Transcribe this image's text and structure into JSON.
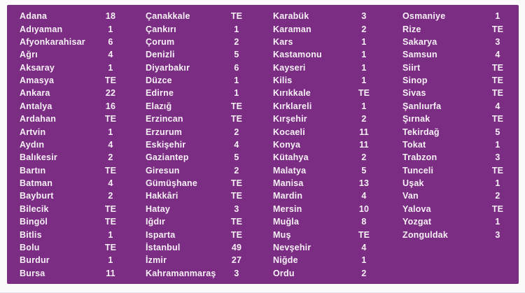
{
  "colors": {
    "page_bg": "#fbfbfc",
    "panel_bg": "#7b2d83",
    "text": "#f7f0f6",
    "page_edge": "#e4e4e8"
  },
  "chart_data": {
    "type": "table",
    "title": "",
    "group_fields": [
      "province",
      "value"
    ],
    "non_numeric_value": "TE",
    "columns": [
      {
        "rows": [
          {
            "label": "Adana",
            "value": "18"
          },
          {
            "label": "Adıyaman",
            "value": "1"
          },
          {
            "label": "Afyonkarahisar",
            "value": "6"
          },
          {
            "label": "Ağrı",
            "value": "4"
          },
          {
            "label": "Aksaray",
            "value": "1"
          },
          {
            "label": "Amasya",
            "value": "TE"
          },
          {
            "label": "Ankara",
            "value": "22"
          },
          {
            "label": "Antalya",
            "value": "16"
          },
          {
            "label": "Ardahan",
            "value": "TE"
          },
          {
            "label": "Artvin",
            "value": "1"
          },
          {
            "label": "Aydın",
            "value": "4"
          },
          {
            "label": "Balıkesir",
            "value": "2"
          },
          {
            "label": "Bartın",
            "value": "TE"
          },
          {
            "label": "Batman",
            "value": "4"
          },
          {
            "label": "Bayburt",
            "value": "2"
          },
          {
            "label": "Bilecik",
            "value": "TE"
          },
          {
            "label": "Bingöl",
            "value": "TE"
          },
          {
            "label": "Bitlis",
            "value": "1"
          },
          {
            "label": "Bolu",
            "value": "TE"
          },
          {
            "label": "Burdur",
            "value": "1"
          },
          {
            "label": "Bursa",
            "value": "11"
          }
        ]
      },
      {
        "rows": [
          {
            "label": "Çanakkale",
            "value": "TE"
          },
          {
            "label": "Çankırı",
            "value": "1"
          },
          {
            "label": "Çorum",
            "value": "2"
          },
          {
            "label": "Denizli",
            "value": "5"
          },
          {
            "label": "Diyarbakır",
            "value": "6"
          },
          {
            "label": "Düzce",
            "value": "1"
          },
          {
            "label": "Edirne",
            "value": "1"
          },
          {
            "label": "Elazığ",
            "value": "TE"
          },
          {
            "label": "Erzincan",
            "value": "TE"
          },
          {
            "label": "Erzurum",
            "value": "2"
          },
          {
            "label": "Eskişehir",
            "value": "4"
          },
          {
            "label": "Gaziantep",
            "value": "5"
          },
          {
            "label": "Giresun",
            "value": "2"
          },
          {
            "label": "Gümüşhane",
            "value": "TE"
          },
          {
            "label": "Hakkâri",
            "value": "TE"
          },
          {
            "label": "Hatay",
            "value": "3"
          },
          {
            "label": "Iğdır",
            "value": "TE"
          },
          {
            "label": "Isparta",
            "value": "TE"
          },
          {
            "label": "İstanbul",
            "value": "49"
          },
          {
            "label": "İzmir",
            "value": "27"
          },
          {
            "label": "Kahramanmaraş",
            "value": "3"
          }
        ]
      },
      {
        "rows": [
          {
            "label": "Karabük",
            "value": "3"
          },
          {
            "label": "Karaman",
            "value": "2"
          },
          {
            "label": "Kars",
            "value": "1"
          },
          {
            "label": "Kastamonu",
            "value": "1"
          },
          {
            "label": "Kayseri",
            "value": "1"
          },
          {
            "label": "Kilis",
            "value": "1"
          },
          {
            "label": "Kırıkkale",
            "value": "TE"
          },
          {
            "label": "Kırklareli",
            "value": "1"
          },
          {
            "label": "Kırşehir",
            "value": "2"
          },
          {
            "label": "Kocaeli",
            "value": "11"
          },
          {
            "label": "Konya",
            "value": "11"
          },
          {
            "label": "Kütahya",
            "value": "2"
          },
          {
            "label": "Malatya",
            "value": "5"
          },
          {
            "label": "Manisa",
            "value": "13"
          },
          {
            "label": "Mardin",
            "value": "4"
          },
          {
            "label": "Mersin",
            "value": "10"
          },
          {
            "label": "Muğla",
            "value": "8"
          },
          {
            "label": "Muş",
            "value": "TE"
          },
          {
            "label": "Nevşehir",
            "value": "4"
          },
          {
            "label": "Niğde",
            "value": "1"
          },
          {
            "label": "Ordu",
            "value": "2"
          }
        ]
      },
      {
        "rows": [
          {
            "label": "Osmaniye",
            "value": "1"
          },
          {
            "label": "Rize",
            "value": "TE"
          },
          {
            "label": "Sakarya",
            "value": "3"
          },
          {
            "label": "Samsun",
            "value": "4"
          },
          {
            "label": "Siirt",
            "value": "TE"
          },
          {
            "label": "Sinop",
            "value": "TE"
          },
          {
            "label": "Sivas",
            "value": "TE"
          },
          {
            "label": "Şanlıurfa",
            "value": "4"
          },
          {
            "label": "Şırnak",
            "value": "TE"
          },
          {
            "label": "Tekirdağ",
            "value": "5"
          },
          {
            "label": "Tokat",
            "value": "1"
          },
          {
            "label": "Trabzon",
            "value": "3"
          },
          {
            "label": "Tunceli",
            "value": "TE"
          },
          {
            "label": "Uşak",
            "value": "1"
          },
          {
            "label": "Van",
            "value": "2"
          },
          {
            "label": "Yalova",
            "value": "TE"
          },
          {
            "label": "Yozgat",
            "value": "1"
          },
          {
            "label": "Zonguldak",
            "value": "3"
          }
        ]
      }
    ]
  }
}
